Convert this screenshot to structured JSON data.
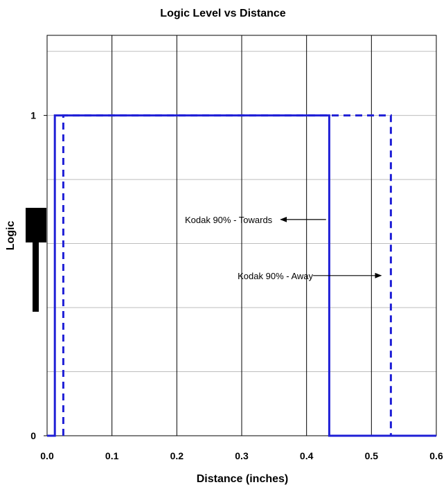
{
  "chart_data": {
    "type": "line",
    "title": "Logic Level vs Distance",
    "xlabel": "Distance (inches)",
    "ylabel": "Logic",
    "xlim": [
      0.0,
      0.6
    ],
    "ylim": [
      0,
      1.25
    ],
    "x_ticks": [
      0.0,
      0.1,
      0.2,
      0.3,
      0.4,
      0.5,
      0.6
    ],
    "x_tick_labels": [
      "0.0",
      "0.1",
      "0.2",
      "0.3",
      "0.4",
      "0.5",
      "0.6"
    ],
    "y_ticks": [
      0,
      1
    ],
    "y_tick_labels": [
      "0",
      "1"
    ],
    "y_minor_gridlines": [
      0.2,
      0.4,
      0.6,
      0.8,
      1.0,
      1.2
    ],
    "grid": true,
    "series": [
      {
        "name": "Kodak 90% - Towards",
        "color": "#1f1fd6",
        "style": "solid",
        "x": [
          0.0,
          0.012,
          0.012,
          0.435,
          0.435,
          0.6
        ],
        "y": [
          0,
          0,
          1,
          1,
          0,
          0
        ]
      },
      {
        "name": "Kodak 90% - Away",
        "color": "#1f1fd6",
        "style": "dashed",
        "x": [
          0.025,
          0.025,
          0.53,
          0.53
        ],
        "y": [
          0,
          1,
          1,
          0
        ]
      }
    ],
    "annotations": [
      {
        "text": "Kodak 90% - Towards",
        "arrow_from": [
          0.43,
          0.675
        ],
        "arrow_to": [
          0.36,
          0.675
        ]
      },
      {
        "text": "Kodak 90% - Away",
        "arrow_from": [
          0.41,
          0.5
        ],
        "arrow_to": [
          0.515,
          0.5
        ]
      }
    ]
  },
  "marker_color": "#000000"
}
